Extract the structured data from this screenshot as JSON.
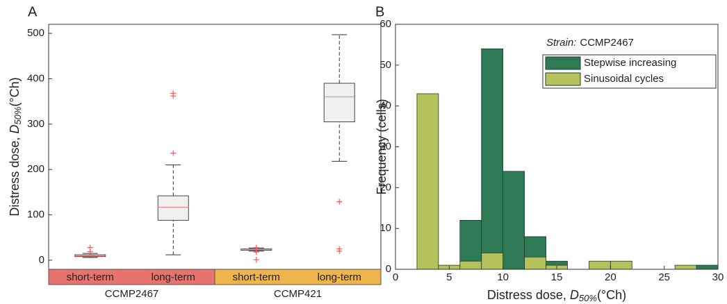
{
  "chart_data": [
    {
      "type": "box",
      "panel_label": "A",
      "ylabel": {
        "text": "Distress dose, ",
        "symbol": "D",
        "subscript": "50%",
        "unit": "(°Ch)"
      },
      "categories": [
        "short-term",
        "long-term",
        "short-term",
        "long-term"
      ],
      "groups": [
        {
          "name": "CCMP2467",
          "color": "#e8736c",
          "span": [
            0,
            1
          ]
        },
        {
          "name": "CCMP421",
          "color": "#f0b44c",
          "span": [
            2,
            3
          ]
        }
      ],
      "box_color": "#444444",
      "box_fill": "#f0f0f0",
      "median_color": "#f08080",
      "outlier_color": "#f06060",
      "series": [
        {
          "min": 6,
          "q1": 8,
          "median": 10,
          "q3": 12,
          "max": 15,
          "outliers": [
            28,
            19
          ]
        },
        {
          "min": 12,
          "q1": 88,
          "median": 117,
          "q3": 142,
          "max": 210,
          "outliers": [
            368,
            362,
            236
          ]
        },
        {
          "min": 20,
          "q1": 22,
          "median": 24,
          "q3": 25,
          "max": 27,
          "outliers": [
            28,
            18,
            1
          ]
        },
        {
          "min": 218,
          "q1": 305,
          "median": 360,
          "q3": 390,
          "max": 497,
          "outliers": [
            129,
            25,
            20
          ]
        }
      ],
      "ylim": [
        -20,
        520
      ],
      "yticks": [
        0,
        100,
        200,
        300,
        400,
        500
      ]
    },
    {
      "type": "histogram",
      "panel_label": "B",
      "xlabel": {
        "text": "Distress dose, ",
        "symbol": "D",
        "subscript": "50%",
        "unit": "(°Ch)"
      },
      "ylabel": "Frequency (cells)",
      "legend_title": {
        "label": "Strain:",
        "value": "CCMP2467"
      },
      "bins": [
        0,
        2,
        4,
        6,
        8,
        10,
        12,
        14,
        16,
        18,
        20,
        22,
        24,
        26,
        28,
        30
      ],
      "series": [
        {
          "name": "Stepwise increasing",
          "color": "#2e7a55",
          "values": [
            0,
            0,
            0,
            12,
            54,
            24,
            8,
            2,
            0,
            0,
            0,
            0,
            0,
            0,
            1
          ]
        },
        {
          "name": "Sinusoidal cycles",
          "color": "#b5c15a",
          "values": [
            0,
            43,
            1,
            2,
            4,
            0,
            3,
            1,
            0,
            2,
            2,
            0,
            0,
            1,
            0
          ]
        }
      ],
      "xlim": [
        0,
        30
      ],
      "xticks": [
        0,
        5,
        10,
        15,
        20,
        25,
        30
      ],
      "ylim": [
        0,
        60
      ],
      "yticks": [
        0,
        10,
        20,
        30,
        40,
        50,
        60
      ]
    }
  ]
}
